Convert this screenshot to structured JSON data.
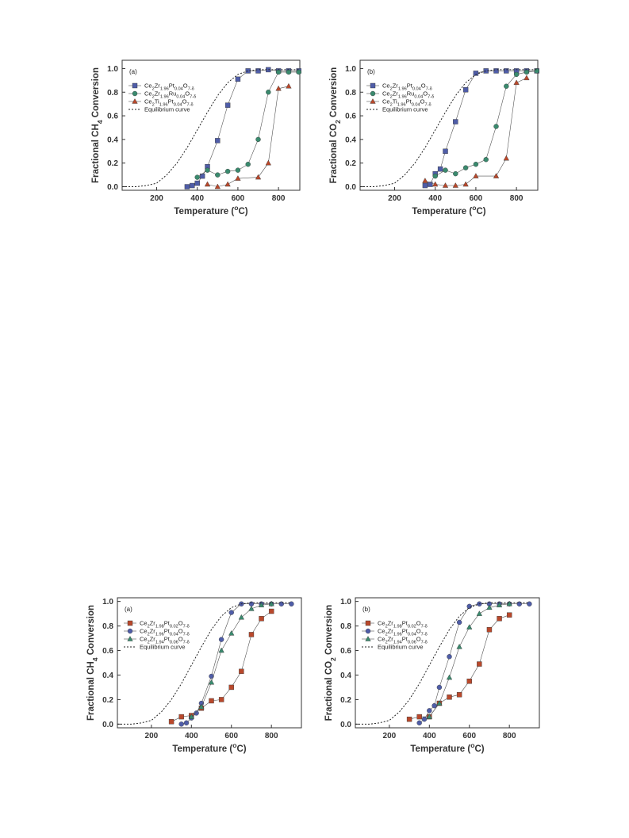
{
  "chart_data": [
    {
      "type": "line",
      "panel_label": "(a)",
      "xlabel": "Temperature (°C)",
      "ylabel": "Fractional CH4 Conversion",
      "xlim": [
        30,
        905
      ],
      "ylim": [
        -0.03,
        1.07
      ],
      "xticks": [
        200,
        400,
        600,
        800
      ],
      "yticks": [
        0.0,
        0.2,
        0.4,
        0.6,
        0.8,
        1.0
      ],
      "legend_position": "top-left",
      "series": [
        {
          "name": "Ce2Zr1.96Pt0.04O7-δ",
          "legend_parts": [
            [
              "Ce",
              ""
            ],
            [
              "2",
              "sub"
            ],
            [
              "Zr",
              ""
            ],
            [
              "1.96",
              "sub"
            ],
            [
              "Pt",
              ""
            ],
            [
              "0.04",
              "sub"
            ],
            [
              "O",
              ""
            ],
            [
              "7-δ",
              "sub"
            ]
          ],
          "color": "#4f5da8",
          "marker": "square",
          "x": [
            350,
            375,
            400,
            425,
            450,
            500,
            550,
            600,
            650,
            700,
            750,
            800,
            850,
            900
          ],
          "y": [
            0.0,
            0.01,
            0.03,
            0.09,
            0.17,
            0.39,
            0.69,
            0.91,
            0.98,
            0.98,
            0.99,
            0.98,
            0.98,
            0.98
          ]
        },
        {
          "name": "Ce2Zr1.96Ru0.04O7-δ",
          "legend_parts": [
            [
              "Ce",
              ""
            ],
            [
              "2",
              "sub"
            ],
            [
              "Zr",
              ""
            ],
            [
              "1.96",
              "sub"
            ],
            [
              "Ru",
              ""
            ],
            [
              "0.04",
              "sub"
            ],
            [
              "O",
              ""
            ],
            [
              "7-δ",
              "sub"
            ]
          ],
          "color": "#3a8a6e",
          "marker": "circle",
          "x": [
            400,
            450,
            500,
            550,
            600,
            650,
            700,
            750,
            800,
            850,
            900
          ],
          "y": [
            0.08,
            0.14,
            0.1,
            0.13,
            0.14,
            0.19,
            0.4,
            0.8,
            0.97,
            0.97,
            0.97
          ]
        },
        {
          "name": "Ce2Ti1.96Pt0.04O7-δ",
          "legend_parts": [
            [
              "Ce",
              ""
            ],
            [
              "2",
              "sub"
            ],
            [
              "Ti",
              ""
            ],
            [
              "1.96",
              "sub"
            ],
            [
              "Pt",
              ""
            ],
            [
              "0.04",
              "sub"
            ],
            [
              "O",
              ""
            ],
            [
              "7-δ",
              "sub"
            ]
          ],
          "color": "#b9482b",
          "marker": "triangle",
          "x": [
            450,
            500,
            550,
            600,
            700,
            750,
            800,
            850
          ],
          "y": [
            0.02,
            0.0,
            0.02,
            0.07,
            0.08,
            0.2,
            0.83,
            0.85
          ]
        },
        {
          "name": "Equilibrium curve",
          "color": "#222222",
          "marker": "none",
          "dashed": true,
          "x": [
            30,
            100,
            150,
            200,
            250,
            300,
            350,
            400,
            450,
            500,
            550,
            600,
            650,
            700,
            750,
            800,
            850,
            900
          ],
          "y": [
            0.0,
            0.0,
            0.01,
            0.03,
            0.1,
            0.2,
            0.33,
            0.48,
            0.63,
            0.77,
            0.88,
            0.95,
            0.98,
            0.99,
            0.99,
            0.99,
            0.99,
            0.99
          ]
        }
      ]
    },
    {
      "type": "line",
      "panel_label": "(b)",
      "xlabel": "Temperature (°C)",
      "ylabel": "Fractional CO2 Conversion",
      "xlim": [
        30,
        905
      ],
      "ylim": [
        -0.03,
        1.07
      ],
      "xticks": [
        200,
        400,
        600,
        800
      ],
      "yticks": [
        0.0,
        0.2,
        0.4,
        0.6,
        0.8,
        1.0
      ],
      "legend_position": "top-left",
      "series": [
        {
          "name": "Ce2Zr1.96Pt0.04O7-δ",
          "legend_parts": [
            [
              "Ce",
              ""
            ],
            [
              "2",
              "sub"
            ],
            [
              "Zr",
              ""
            ],
            [
              "1.96",
              "sub"
            ],
            [
              "Pt",
              ""
            ],
            [
              "0.04",
              "sub"
            ],
            [
              "O",
              ""
            ],
            [
              "7-δ",
              "sub"
            ]
          ],
          "color": "#4f5da8",
          "marker": "square",
          "x": [
            350,
            375,
            400,
            425,
            450,
            500,
            550,
            600,
            650,
            700,
            750,
            800,
            850,
            900
          ],
          "y": [
            0.01,
            0.02,
            0.11,
            0.15,
            0.3,
            0.55,
            0.82,
            0.96,
            0.98,
            0.98,
            0.98,
            0.98,
            0.98,
            0.98
          ]
        },
        {
          "name": "Ce2Zr1.96Ru0.04O7-δ",
          "legend_parts": [
            [
              "Ce",
              ""
            ],
            [
              "2",
              "sub"
            ],
            [
              "Zr",
              ""
            ],
            [
              "1.96",
              "sub"
            ],
            [
              "Ru",
              ""
            ],
            [
              "0.04",
              "sub"
            ],
            [
              "O",
              ""
            ],
            [
              "7-δ",
              "sub"
            ]
          ],
          "color": "#3a8a6e",
          "marker": "circle",
          "x": [
            400,
            450,
            500,
            550,
            600,
            650,
            700,
            750,
            800,
            850,
            900
          ],
          "y": [
            0.09,
            0.14,
            0.11,
            0.16,
            0.19,
            0.23,
            0.51,
            0.85,
            0.95,
            0.97,
            0.98
          ]
        },
        {
          "name": "Ce2Ti1.96Pt0.04O7-δ",
          "legend_parts": [
            [
              "Ce",
              ""
            ],
            [
              "2",
              "sub"
            ],
            [
              "Ti",
              ""
            ],
            [
              "1.96",
              "sub"
            ],
            [
              "Pt",
              ""
            ],
            [
              "0.04",
              "sub"
            ],
            [
              "O",
              ""
            ],
            [
              "7-δ",
              "sub"
            ]
          ],
          "color": "#b9482b",
          "marker": "triangle",
          "x": [
            350,
            400,
            450,
            500,
            550,
            600,
            700,
            750,
            800,
            850
          ],
          "y": [
            0.05,
            0.02,
            0.01,
            0.01,
            0.02,
            0.09,
            0.09,
            0.24,
            0.88,
            0.92
          ]
        },
        {
          "name": "Equilibrium curve",
          "color": "#222222",
          "marker": "none",
          "dashed": true,
          "x": [
            30,
            100,
            150,
            200,
            250,
            300,
            350,
            400,
            450,
            500,
            550,
            600,
            650,
            700,
            750,
            800,
            850,
            900
          ],
          "y": [
            0.0,
            0.0,
            0.01,
            0.03,
            0.1,
            0.2,
            0.33,
            0.48,
            0.63,
            0.77,
            0.88,
            0.95,
            0.98,
            0.99,
            0.99,
            0.99,
            0.99,
            0.99
          ]
        }
      ]
    },
    {
      "type": "line",
      "panel_label": "(a)",
      "xlabel": "Temperature (°C)",
      "ylabel": "Fractional CH4 Conversion",
      "xlim": [
        30,
        950
      ],
      "ylim": [
        -0.03,
        1.03
      ],
      "xticks": [
        200,
        400,
        600,
        800
      ],
      "yticks": [
        0.0,
        0.2,
        0.4,
        0.6,
        0.8,
        1.0
      ],
      "legend_position": "top-left",
      "series": [
        {
          "name": "Ce2Zr1.98Pt0.02O7-δ",
          "legend_parts": [
            [
              "Ce",
              ""
            ],
            [
              "2",
              "sub"
            ],
            [
              "Zr",
              ""
            ],
            [
              "1.98",
              "sub"
            ],
            [
              "Pt",
              ""
            ],
            [
              "0.02",
              "sub"
            ],
            [
              "O",
              ""
            ],
            [
              "7-δ",
              "sub"
            ]
          ],
          "color": "#b9482b",
          "marker": "square",
          "x": [
            300,
            350,
            400,
            450,
            500,
            550,
            600,
            650,
            700,
            750,
            800
          ],
          "y": [
            0.02,
            0.06,
            0.07,
            0.13,
            0.19,
            0.2,
            0.3,
            0.43,
            0.73,
            0.86,
            0.92
          ]
        },
        {
          "name": "Ce2Zr1.96Pt0.04O7-δ",
          "legend_parts": [
            [
              "Ce",
              ""
            ],
            [
              "2",
              "sub"
            ],
            [
              "Zr",
              ""
            ],
            [
              "1.96",
              "sub"
            ],
            [
              "Pt",
              ""
            ],
            [
              "0.04",
              "sub"
            ],
            [
              "O",
              ""
            ],
            [
              "7-δ",
              "sub"
            ]
          ],
          "color": "#4f5da8",
          "marker": "circle",
          "x": [
            350,
            375,
            400,
            425,
            450,
            500,
            550,
            600,
            650,
            700,
            750,
            800,
            850,
            900
          ],
          "y": [
            0.0,
            0.01,
            0.05,
            0.09,
            0.17,
            0.39,
            0.69,
            0.91,
            0.98,
            0.98,
            0.98,
            0.98,
            0.98,
            0.98
          ]
        },
        {
          "name": "Ce2Zr1.94Pt0.06O7-δ",
          "legend_parts": [
            [
              "Ce",
              ""
            ],
            [
              "2",
              "sub"
            ],
            [
              "Zr",
              ""
            ],
            [
              "1.94",
              "sub"
            ],
            [
              "Pt",
              ""
            ],
            [
              "0.06",
              "sub"
            ],
            [
              "O",
              ""
            ],
            [
              "7-δ",
              "sub"
            ]
          ],
          "color": "#3a8a6e",
          "marker": "triangle",
          "x": [
            400,
            450,
            500,
            550,
            600,
            650,
            700,
            750,
            800
          ],
          "y": [
            0.06,
            0.14,
            0.34,
            0.6,
            0.74,
            0.87,
            0.94,
            0.97,
            0.98
          ]
        },
        {
          "name": "Equilibrium curve",
          "color": "#222222",
          "marker": "none",
          "dashed": true,
          "x": [
            30,
            100,
            150,
            200,
            250,
            300,
            350,
            400,
            450,
            500,
            550,
            600,
            650,
            700,
            750,
            800,
            850,
            900
          ],
          "y": [
            0.0,
            0.0,
            0.01,
            0.03,
            0.1,
            0.2,
            0.33,
            0.48,
            0.63,
            0.77,
            0.88,
            0.95,
            0.98,
            0.99,
            0.99,
            0.99,
            0.99,
            0.99
          ]
        }
      ]
    },
    {
      "type": "line",
      "panel_label": "(b)",
      "xlabel": "Temperature (°C)",
      "ylabel": "Fractional CO2 Conversion",
      "xlim": [
        30,
        950
      ],
      "ylim": [
        -0.03,
        1.03
      ],
      "xticks": [
        200,
        400,
        600,
        800
      ],
      "yticks": [
        0.0,
        0.2,
        0.4,
        0.6,
        0.8,
        1.0
      ],
      "legend_position": "top-left",
      "series": [
        {
          "name": "Ce2Zr1.98Pt0.02O7-δ",
          "legend_parts": [
            [
              "Ce",
              ""
            ],
            [
              "2",
              "sub"
            ],
            [
              "Zr",
              ""
            ],
            [
              "1.98",
              "sub"
            ],
            [
              "Pt",
              ""
            ],
            [
              "0.02",
              "sub"
            ],
            [
              "O",
              ""
            ],
            [
              "7-δ",
              "sub"
            ]
          ],
          "color": "#b9482b",
          "marker": "square",
          "x": [
            300,
            350,
            400,
            450,
            500,
            550,
            600,
            650,
            700,
            750,
            800
          ],
          "y": [
            0.04,
            0.06,
            0.06,
            0.17,
            0.22,
            0.24,
            0.35,
            0.49,
            0.77,
            0.86,
            0.89
          ]
        },
        {
          "name": "Ce2Zr1.96Pt0.04O7-δ",
          "legend_parts": [
            [
              "Ce",
              ""
            ],
            [
              "2",
              "sub"
            ],
            [
              "Zr",
              ""
            ],
            [
              "1.96",
              "sub"
            ],
            [
              "Pt",
              ""
            ],
            [
              "0.04",
              "sub"
            ],
            [
              "O",
              ""
            ],
            [
              "7-δ",
              "sub"
            ]
          ],
          "color": "#4f5da8",
          "marker": "circle",
          "x": [
            350,
            375,
            400,
            425,
            450,
            500,
            550,
            600,
            650,
            700,
            750,
            800,
            850,
            900
          ],
          "y": [
            0.01,
            0.04,
            0.11,
            0.15,
            0.3,
            0.55,
            0.83,
            0.96,
            0.98,
            0.98,
            0.98,
            0.98,
            0.98,
            0.98
          ]
        },
        {
          "name": "Ce2Zr1.94Pt0.06O7-δ",
          "legend_parts": [
            [
              "Ce",
              ""
            ],
            [
              "2",
              "sub"
            ],
            [
              "Zr",
              ""
            ],
            [
              "1.94",
              "sub"
            ],
            [
              "Pt",
              ""
            ],
            [
              "0.06",
              "sub"
            ],
            [
              "O",
              ""
            ],
            [
              "7-δ",
              "sub"
            ]
          ],
          "color": "#3a8a6e",
          "marker": "triangle",
          "x": [
            400,
            450,
            500,
            550,
            600,
            650,
            700,
            750,
            800
          ],
          "y": [
            0.06,
            0.17,
            0.38,
            0.63,
            0.79,
            0.9,
            0.95,
            0.97,
            0.98
          ]
        },
        {
          "name": "Equilibrium curve",
          "color": "#222222",
          "marker": "none",
          "dashed": true,
          "x": [
            30,
            100,
            150,
            200,
            250,
            300,
            350,
            400,
            450,
            500,
            550,
            600,
            650,
            700,
            750,
            800,
            850,
            900
          ],
          "y": [
            0.0,
            0.0,
            0.01,
            0.03,
            0.1,
            0.2,
            0.33,
            0.48,
            0.63,
            0.77,
            0.88,
            0.95,
            0.98,
            0.99,
            0.99,
            0.99,
            0.99,
            0.99
          ]
        }
      ]
    }
  ]
}
